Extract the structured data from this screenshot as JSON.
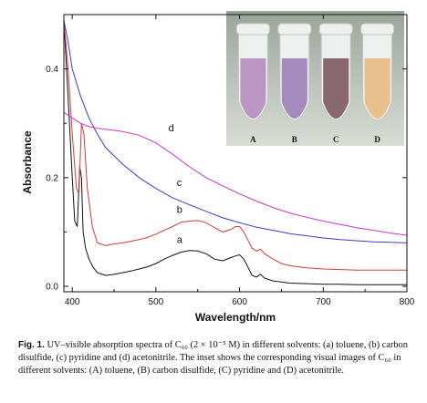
{
  "chart_data": {
    "type": "line",
    "title": "",
    "xlabel": "Wavelength/nm",
    "ylabel": "Absorbance",
    "xlim": [
      390,
      800
    ],
    "ylim": [
      -0.01,
      0.5
    ],
    "xticks": [
      400,
      500,
      600,
      700,
      800
    ],
    "yticks": [
      0.0,
      0.2,
      0.4
    ],
    "xtick_labels": [
      "400",
      "500",
      "600",
      "700",
      "800"
    ],
    "ytick_labels": [
      "0.0",
      "0.2",
      "0.4"
    ],
    "grid": false,
    "series": [
      {
        "name": "a",
        "color": "#111111",
        "x": [
          390,
          395,
          400,
          403,
          406,
          409,
          411,
          413,
          416,
          420,
          425,
          430,
          440,
          450,
          460,
          470,
          480,
          490,
          500,
          510,
          520,
          530,
          540,
          550,
          560,
          570,
          580,
          590,
          595,
          600,
          605,
          610,
          615,
          620,
          625,
          630,
          640,
          650,
          660,
          680,
          700,
          720,
          740,
          760,
          780,
          800
        ],
        "y": [
          0.49,
          0.35,
          0.2,
          0.12,
          0.11,
          0.22,
          0.2,
          0.1,
          0.07,
          0.05,
          0.035,
          0.025,
          0.02,
          0.022,
          0.025,
          0.028,
          0.032,
          0.036,
          0.042,
          0.05,
          0.057,
          0.063,
          0.066,
          0.065,
          0.06,
          0.05,
          0.047,
          0.053,
          0.056,
          0.058,
          0.05,
          0.035,
          0.02,
          0.017,
          0.022,
          0.015,
          0.01,
          0.008,
          0.006,
          0.005,
          0.004,
          0.004,
          0.003,
          0.003,
          0.003,
          0.003
        ]
      },
      {
        "name": "b",
        "color": "#d43a3a",
        "x": [
          390,
          395,
          400,
          405,
          408,
          411,
          414,
          418,
          424,
          430,
          440,
          450,
          460,
          470,
          480,
          490,
          500,
          510,
          520,
          530,
          540,
          550,
          560,
          570,
          580,
          590,
          595,
          600,
          605,
          610,
          615,
          620,
          625,
          630,
          640,
          650,
          660,
          680,
          700,
          720,
          740,
          760,
          780,
          800
        ],
        "y": [
          0.49,
          0.4,
          0.28,
          0.18,
          0.17,
          0.3,
          0.28,
          0.18,
          0.11,
          0.08,
          0.075,
          0.078,
          0.08,
          0.083,
          0.086,
          0.09,
          0.096,
          0.103,
          0.11,
          0.118,
          0.12,
          0.121,
          0.117,
          0.108,
          0.1,
          0.105,
          0.11,
          0.11,
          0.1,
          0.085,
          0.07,
          0.065,
          0.068,
          0.06,
          0.05,
          0.042,
          0.038,
          0.034,
          0.032,
          0.031,
          0.03,
          0.03,
          0.03,
          0.03
        ]
      },
      {
        "name": "c",
        "color": "#3a3ad4",
        "x": [
          390,
          395,
          400,
          410,
          420,
          430,
          440,
          460,
          480,
          500,
          520,
          540,
          560,
          580,
          600,
          620,
          640,
          660,
          680,
          700,
          720,
          740,
          760,
          780,
          800
        ],
        "y": [
          0.49,
          0.45,
          0.4,
          0.35,
          0.31,
          0.28,
          0.255,
          0.225,
          0.2,
          0.18,
          0.163,
          0.15,
          0.138,
          0.126,
          0.117,
          0.109,
          0.103,
          0.097,
          0.093,
          0.089,
          0.086,
          0.084,
          0.082,
          0.081,
          0.08
        ]
      },
      {
        "name": "d",
        "color": "#cc33cc",
        "x": [
          390,
          400,
          410,
          420,
          430,
          440,
          460,
          480,
          500,
          520,
          540,
          560,
          580,
          600,
          620,
          640,
          660,
          680,
          700,
          720,
          740,
          760,
          780,
          800
        ],
        "y": [
          0.32,
          0.31,
          0.3,
          0.294,
          0.291,
          0.289,
          0.285,
          0.278,
          0.264,
          0.243,
          0.22,
          0.2,
          0.185,
          0.17,
          0.157,
          0.145,
          0.135,
          0.127,
          0.12,
          0.114,
          0.108,
          0.103,
          0.098,
          0.094
        ]
      }
    ],
    "curve_labels": [
      {
        "text": "a",
        "x": 525,
        "y": 0.08
      },
      {
        "text": "b",
        "x": 525,
        "y": 0.135
      },
      {
        "text": "c",
        "x": 525,
        "y": 0.185
      },
      {
        "text": "d",
        "x": 515,
        "y": 0.285
      }
    ],
    "inset": {
      "tube_labels": [
        "A",
        "B",
        "C",
        "D"
      ],
      "tube_colors": [
        "#b58cc0",
        "#9c7fb5",
        "#7c5860",
        "#e8b980"
      ]
    }
  },
  "caption": {
    "lead": "Fig. 1.",
    "text": "UV–visible absorption spectra of C₆₀ (2 × 10⁻⁵ M) in different solvents: (a) toluene, (b) carbon disulfide, (c) pyridine and (d) acetonitrile. The inset shows the corresponding visual images of C₆₀ in different solvents: (A) toluene, (B) carbon disulfide, (C) pyridine and (D) acetonitrile."
  }
}
